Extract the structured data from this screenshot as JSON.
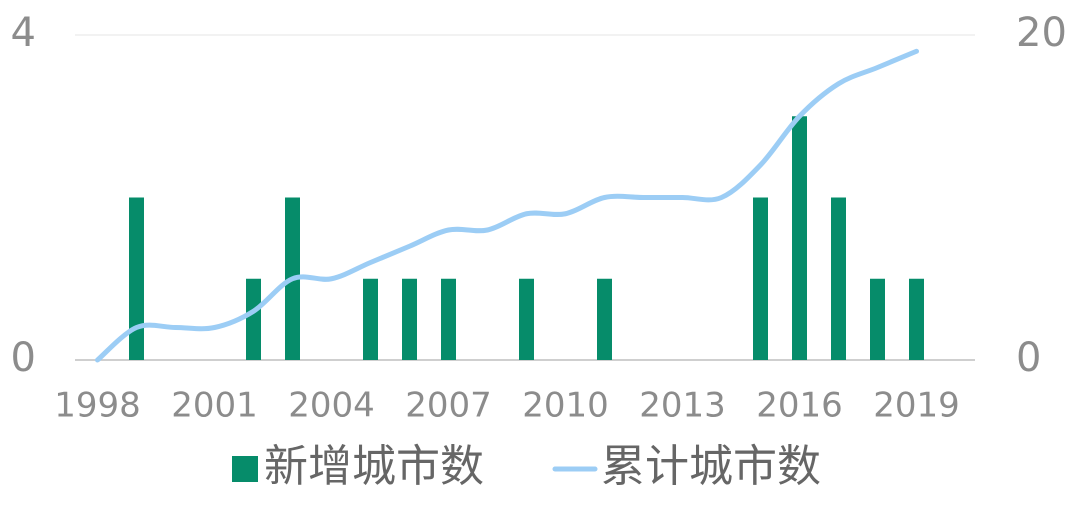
{
  "chart_data": {
    "type": "bar",
    "categories": [
      "1998",
      null,
      null,
      "2001",
      null,
      null,
      "2004",
      null,
      null,
      "2007",
      null,
      null,
      "2010",
      null,
      null,
      "2013",
      null,
      null,
      "2016",
      null,
      null,
      "2019"
    ],
    "series": [
      {
        "name": "新增城市数",
        "type": "bar",
        "color": "#068c6a",
        "values": [
          0,
          2,
          0,
          0,
          1,
          2,
          0,
          1,
          1,
          1,
          0,
          1,
          0,
          1,
          0,
          0,
          0,
          2,
          3,
          2,
          1,
          1
        ]
      },
      {
        "name": "累计城市数",
        "type": "line",
        "axis": "y2",
        "color": "#9ccdf5",
        "values": [
          0,
          2,
          2,
          2,
          3,
          5,
          5,
          6,
          7,
          8,
          8,
          9,
          9,
          10,
          10,
          10,
          10,
          12,
          15,
          17,
          18,
          19
        ]
      }
    ],
    "ylim": [
      0,
      4
    ],
    "yticks": [
      0,
      4
    ],
    "y2lim": [
      0,
      20
    ],
    "y2ticks": [
      0,
      20
    ],
    "grid": true
  }
}
